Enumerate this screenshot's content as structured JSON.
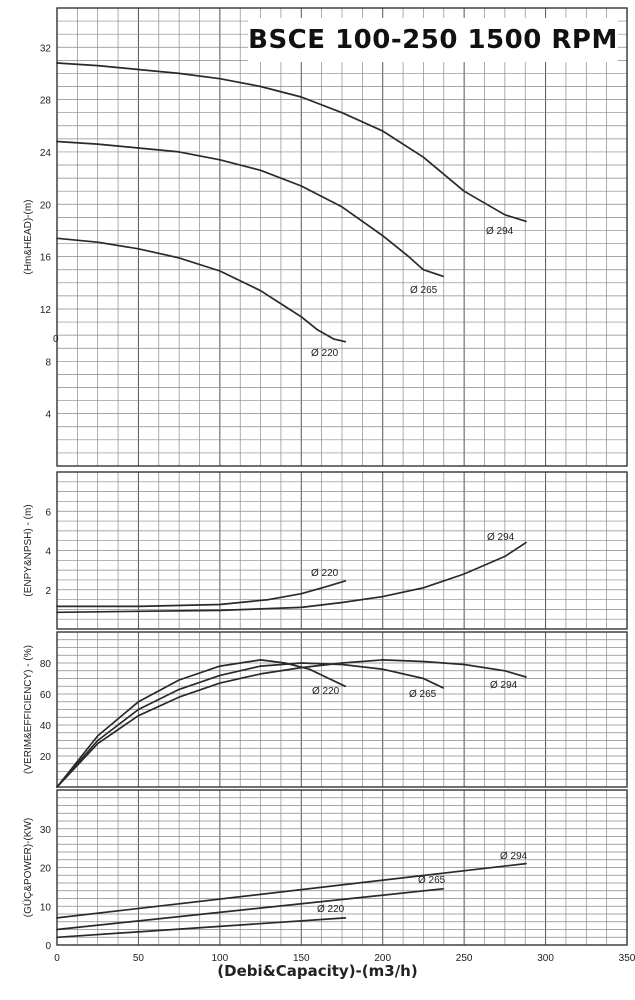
{
  "chart_data": {
    "title": "BSCE 100-250 1500 RPM",
    "xlabel": "(Debi&Capacity)-(m3/h)",
    "stray_label": "0",
    "type": "line",
    "x_ticks": [
      "0",
      "50",
      "100",
      "150",
      "200",
      "250",
      "300",
      "350"
    ],
    "xlim": [
      0,
      350
    ],
    "grid": true,
    "panels": [
      {
        "key": "head",
        "ylabel": "(Hm&HEAD)-(m)",
        "ylim": [
          0,
          35
        ],
        "y_ticks": [
          "4",
          "8",
          "12",
          "16",
          "20",
          "24",
          "28",
          "32"
        ],
        "series": [
          {
            "name": "Ø 294",
            "x": [
              0,
              25,
              50,
              75,
              100,
              125,
              150,
              175,
              200,
              225,
              250,
              275,
              288
            ],
            "y": [
              30.8,
              30.6,
              30.3,
              30.0,
              29.6,
              29.0,
              28.2,
              27.0,
              25.6,
              23.6,
              21.0,
              19.2,
              18.7
            ]
          },
          {
            "name": "Ø 265",
            "x": [
              0,
              25,
              50,
              75,
              100,
              125,
              150,
              175,
              200,
              215,
              225,
              237
            ],
            "y": [
              24.8,
              24.6,
              24.3,
              24.0,
              23.4,
              22.6,
              21.4,
              19.8,
              17.6,
              16.1,
              15.0,
              14.5
            ]
          },
          {
            "name": "Ø 220",
            "x": [
              0,
              25,
              50,
              75,
              100,
              125,
              140,
              150,
              160,
              170,
              177
            ],
            "y": [
              17.4,
              17.1,
              16.6,
              15.9,
              14.9,
              13.4,
              12.2,
              11.4,
              10.4,
              9.7,
              9.5
            ]
          }
        ]
      },
      {
        "key": "npsh",
        "ylabel": "(ENPY&NPSH) - (m)",
        "ylim": [
          0,
          8
        ],
        "y_ticks": [
          "2",
          "4",
          "6"
        ],
        "series": [
          {
            "name": "Ø 294",
            "x": [
              0,
              50,
              100,
              150,
              175,
              200,
              225,
              250,
              275,
              288
            ],
            "y": [
              0.85,
              0.9,
              0.95,
              1.1,
              1.35,
              1.65,
              2.1,
              2.8,
              3.7,
              4.4
            ]
          },
          {
            "name": "Ø 220",
            "x": [
              0,
              50,
              100,
              130,
              150,
              165,
              177
            ],
            "y": [
              1.15,
              1.15,
              1.25,
              1.5,
              1.8,
              2.15,
              2.45
            ]
          }
        ]
      },
      {
        "key": "efficiency",
        "ylabel": "(VERIM&EFFICIENCY) - (%)",
        "ylim": [
          0,
          100
        ],
        "y_ticks": [
          "20",
          "40",
          "60",
          "80"
        ],
        "series": [
          {
            "name": "Ø 294",
            "x": [
              0,
              25,
              50,
              75,
              100,
              125,
              150,
              175,
              200,
              225,
              250,
              275,
              288
            ],
            "y": [
              0,
              28,
              46,
              58,
              67,
              73,
              77,
              80,
              82,
              81,
              79,
              75,
              71
            ]
          },
          {
            "name": "Ø 265",
            "x": [
              0,
              25,
              50,
              75,
              100,
              125,
              150,
              175,
              200,
              225,
              237
            ],
            "y": [
              0,
              30,
              50,
              63,
              72,
              78,
              80,
              79,
              76,
              70,
              64
            ]
          },
          {
            "name": "Ø 220",
            "x": [
              0,
              25,
              50,
              75,
              100,
              125,
              140,
              155,
              165,
              177
            ],
            "y": [
              0,
              33,
              55,
              69,
              78,
              82,
              80,
              76,
              71,
              65
            ]
          }
        ]
      },
      {
        "key": "power",
        "ylabel": "(GÜÇ&POWER)-(KW)",
        "ylim": [
          0,
          40
        ],
        "y_ticks": [
          "0",
          "10",
          "20",
          "30"
        ],
        "series": [
          {
            "name": "Ø 294",
            "x": [
              0,
              288
            ],
            "y": [
              7.0,
              21.0
            ]
          },
          {
            "name": "Ø 265",
            "x": [
              0,
              237
            ],
            "y": [
              4.0,
              14.5
            ]
          },
          {
            "name": "Ø 220",
            "x": [
              0,
              177
            ],
            "y": [
              2.0,
              7.0
            ]
          }
        ]
      }
    ]
  }
}
